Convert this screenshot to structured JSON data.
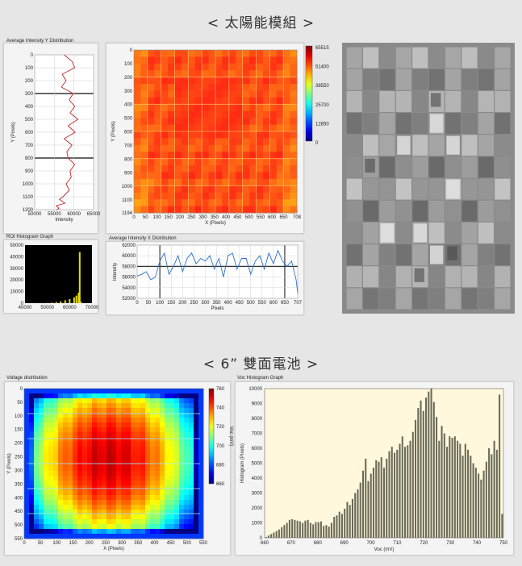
{
  "header_top": "<  太陽能模組  >",
  "header_bottom": "<  6” 雙面電池  >",
  "panel_y_dist": {
    "title": "Average Intensity Y Distribution",
    "xlabel": "Intensity",
    "ylabel": "Y (Pixels)",
    "x_ticks": [
      "50000",
      "55000",
      "60000",
      "65000"
    ],
    "y_ticks": [
      "0",
      "100",
      "200",
      "300",
      "400",
      "500",
      "600",
      "700",
      "800",
      "900",
      "1000",
      "1100",
      "1200"
    ]
  },
  "panel_el_heatmap": {
    "xlabel": "X (Pixels)",
    "ylabel": "Y (Pixels)",
    "x_ticks": [
      "0",
      "50",
      "100",
      "150",
      "200",
      "250",
      "300",
      "350",
      "400",
      "450",
      "500",
      "550",
      "600",
      "650",
      "708"
    ],
    "y_ticks": [
      "0",
      "100",
      "200",
      "300",
      "400",
      "500",
      "600",
      "700",
      "800",
      "900",
      "1000",
      "1100",
      "1194"
    ],
    "colorbar_ticks": [
      "65515",
      "51400",
      "38550",
      "25700",
      "12850",
      "0"
    ]
  },
  "panel_roi_hist": {
    "title": "ROI Histogram Graph",
    "x_ticks": [
      "40000",
      "50000",
      "60000",
      "70000"
    ],
    "y_ticks": [
      "0",
      "10000",
      "20000",
      "30000",
      "40000",
      "50000"
    ]
  },
  "panel_x_dist": {
    "title": "Average Intensity X Distribution",
    "xlabel": "Pixels",
    "ylabel": "Intensity",
    "x_ticks": [
      "0",
      "50",
      "100",
      "150",
      "200",
      "250",
      "300",
      "350",
      "400",
      "450",
      "500",
      "550",
      "600",
      "650",
      "707"
    ],
    "y_ticks": [
      "52000",
      "54000",
      "56000",
      "58000",
      "60000",
      "62000"
    ]
  },
  "panel_voltage": {
    "title": "Voltage distribution",
    "xlabel": "X (Pixels)",
    "ylabel": "Y (Pixels)",
    "x_ticks": [
      "0",
      "50",
      "100",
      "150",
      "200",
      "250",
      "300",
      "350",
      "400",
      "450",
      "500",
      "550"
    ],
    "y_ticks": [
      "0",
      "50",
      "100",
      "150",
      "200",
      "250",
      "300",
      "350",
      "400",
      "450",
      "500",
      "550"
    ],
    "colorbar_label": "Voc (mV)",
    "colorbar_ticks": [
      "760",
      "740",
      "720",
      "700",
      "680",
      "660"
    ]
  },
  "chart_data": [
    {
      "type": "line",
      "title": "Average Intensity Y Distribution",
      "xlabel": "Intensity",
      "ylabel": "Y (Pixels)",
      "xlim": [
        50000,
        65000
      ],
      "ylim": [
        0,
        1200
      ],
      "series": [
        {
          "x": [
            57500,
            59500,
            60200,
            57000,
            58000,
            56800,
            59800,
            58800,
            60200,
            59000,
            61000,
            58500,
            60300,
            57500,
            59500,
            58200,
            58500,
            60200,
            59000,
            59300,
            58000,
            58800,
            57200,
            56300,
            57700,
            55500,
            56200,
            55600
          ],
          "y": [
            0,
            50,
            100,
            150,
            200,
            250,
            300,
            350,
            400,
            450,
            500,
            550,
            600,
            650,
            700,
            750,
            800,
            850,
            900,
            950,
            1000,
            1050,
            1100,
            1120,
            1150,
            1170,
            1190,
            1200
          ]
        }
      ]
    },
    {
      "type": "heatmap",
      "title": "",
      "xlabel": "X (Pixels)",
      "ylabel": "Y (Pixels)",
      "xlim": [
        0,
        708
      ],
      "ylim": [
        0,
        1194
      ],
      "zlim": [
        0,
        65515
      ]
    },
    {
      "type": "bar",
      "title": "ROI Histogram Graph",
      "xlim": [
        40000,
        70000
      ],
      "ylim": [
        0,
        50000
      ],
      "series": [
        {
          "x": [
            50000,
            52000,
            54000,
            56000,
            58000,
            60000,
            62000,
            63000,
            64000,
            64500,
            65000
          ],
          "values": [
            200,
            400,
            900,
            1600,
            2500,
            3500,
            5000,
            6500,
            9000,
            44000,
            1200
          ]
        }
      ]
    },
    {
      "type": "line",
      "title": "Average Intensity X Distribution",
      "xlabel": "Pixels",
      "ylabel": "Intensity",
      "xlim": [
        0,
        707
      ],
      "ylim": [
        52000,
        62000
      ],
      "series": [
        {
          "x": [
            0,
            20,
            40,
            60,
            80,
            100,
            120,
            140,
            160,
            180,
            200,
            220,
            240,
            260,
            280,
            300,
            320,
            340,
            360,
            380,
            400,
            420,
            440,
            460,
            480,
            500,
            520,
            540,
            560,
            580,
            600,
            620,
            640,
            660,
            680,
            700,
            707
          ],
          "y": [
            56200,
            56500,
            57000,
            55500,
            56000,
            59000,
            60500,
            56500,
            58000,
            60000,
            57000,
            59500,
            60500,
            58500,
            59500,
            59000,
            60000,
            57500,
            59500,
            56000,
            60000,
            60500,
            57500,
            59500,
            59500,
            56500,
            59000,
            60000,
            57500,
            60500,
            58500,
            61000,
            59000,
            58000,
            59000,
            55500,
            53000
          ]
        }
      ]
    },
    {
      "type": "heatmap",
      "title": "Voltage distribution",
      "xlabel": "X (Pixels)",
      "ylabel": "Y (Pixels)",
      "xlim": [
        0,
        550
      ],
      "ylim": [
        0,
        550
      ],
      "zlim": [
        660,
        760
      ],
      "zlabel": "Voc (mV)"
    },
    {
      "type": "bar",
      "title": "Voc Histogram Graph",
      "xlabel": "Voc (mV)",
      "ylabel": "Histogram (Pixels)",
      "xlim": [
        660,
        750
      ],
      "ylim": [
        0,
        10000
      ],
      "x_ticks": [
        "660",
        "670",
        "680",
        "690",
        "700",
        "710",
        "720",
        "730",
        "740",
        "750"
      ],
      "y_ticks": [
        "0",
        "1000",
        "2000",
        "3000",
        "4000",
        "5000",
        "6000",
        "7000",
        "8000",
        "9000",
        "10000"
      ],
      "series": [
        {
          "name": "",
          "values": [
            50,
            150,
            250,
            350,
            450,
            550,
            700,
            850,
            1000,
            1200,
            1250,
            1200,
            1150,
            1100,
            1000,
            1150,
            1200,
            1000,
            900,
            1050,
            1050,
            1100,
            800,
            850,
            750,
            1000,
            1400,
            1500,
            1750,
            1600,
            1950,
            2400,
            2200,
            2600,
            3000,
            3250,
            3700,
            4500,
            5300,
            3800,
            4300,
            4700,
            5200,
            5100,
            5400,
            4700,
            5300,
            5800,
            6100,
            5700,
            5900,
            6300,
            6800,
            6100,
            6200,
            6500,
            7100,
            7900,
            8700,
            9200,
            8500,
            9400,
            9800,
            10000,
            9100,
            8100,
            6500,
            7500,
            7000,
            6100,
            6800,
            6700,
            6800,
            6500,
            6300,
            5500,
            6300,
            5900,
            5500,
            5000,
            4700,
            4300,
            3900,
            4500,
            5100,
            6000,
            5600,
            6500,
            5900,
            9600,
            1600
          ]
        }
      ]
    }
  ]
}
